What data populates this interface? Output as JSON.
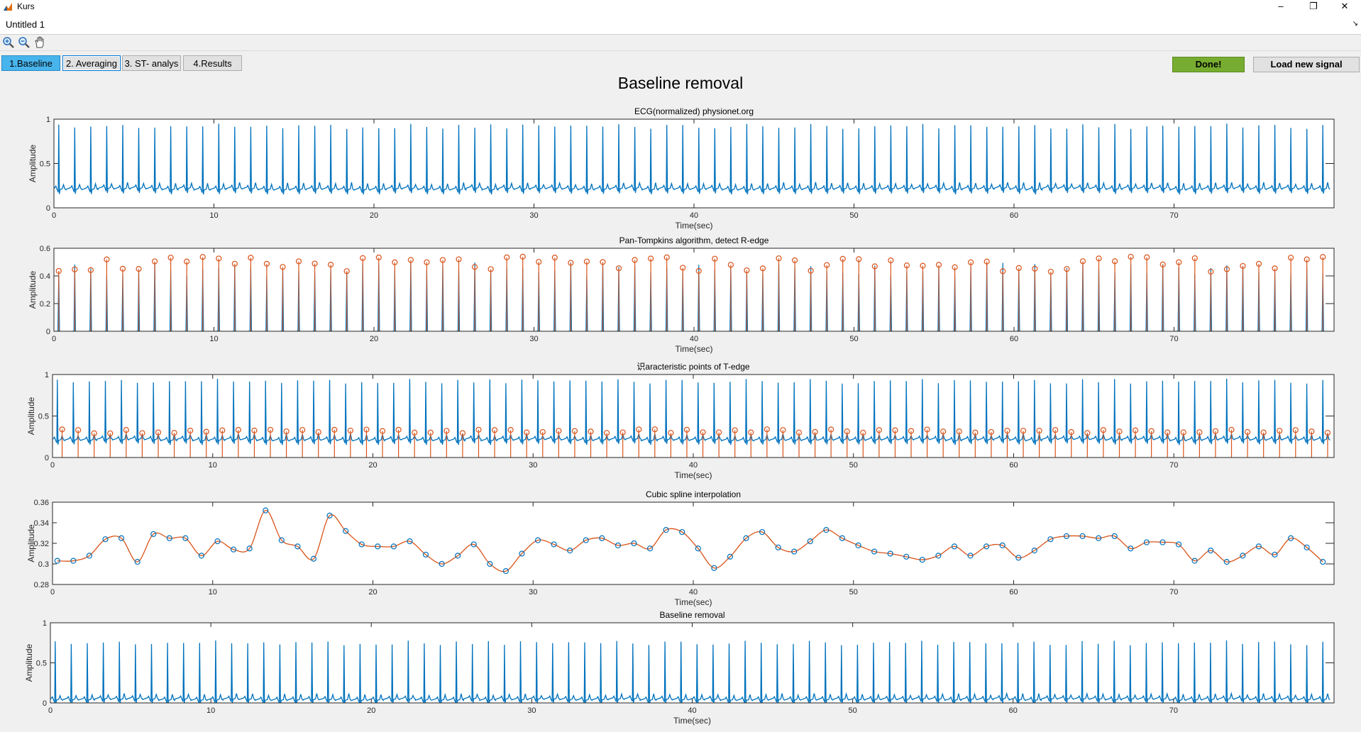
{
  "window": {
    "app_title": "Kurs",
    "minimize_glyph": "–",
    "restore_glyph": "❐",
    "close_glyph": "✕"
  },
  "document": {
    "title": "Untitled 1",
    "dock_arrow": "↘"
  },
  "toolbar": {
    "icons": [
      "zoom-in-icon",
      "zoom-out-icon",
      "pan-hand-icon"
    ]
  },
  "tabs": [
    {
      "label": "1.Baseline",
      "active": true
    },
    {
      "label": "2. Averaging",
      "active": false
    },
    {
      "label": "3. ST- analys",
      "active": false
    },
    {
      "label": "4.Results",
      "active": false
    }
  ],
  "buttons": {
    "done": "Done!",
    "load": "Load new signal"
  },
  "colors": {
    "signal": "#0072bd",
    "marker": "#d95319",
    "done": "#77ac30",
    "active_tab": "#48b4ec"
  },
  "page_title": "Baseline removal",
  "chart_data": [
    {
      "type": "line",
      "title": "ECG(normalized) physionet.org",
      "xlabel": "Time(sec)",
      "ylabel": "Amplitude",
      "xlim": [
        0,
        80
      ],
      "ylim": [
        0,
        1
      ],
      "xticks": [
        0,
        10,
        20,
        30,
        40,
        50,
        60,
        70
      ],
      "yticks": [
        "0",
        "0.5",
        "1"
      ],
      "series": [
        {
          "kind": "ecg",
          "baseline": 0.2,
          "peak": 0.95
        }
      ]
    },
    {
      "type": "line",
      "title": "Pan-Tompkins algorithm, detect R-edge",
      "xlabel": "Time(sec)",
      "ylabel": "Amplitude",
      "xlim": [
        0,
        80
      ],
      "ylim": [
        0,
        0.6
      ],
      "xticks": [
        0,
        10,
        20,
        30,
        40,
        50,
        60,
        70
      ],
      "yticks": [
        "0",
        "0.2",
        "0.4",
        "0.6"
      ],
      "series": [
        {
          "kind": "pulses",
          "peak": 0.5
        },
        {
          "kind": "r-peak-markers",
          "marker": "o"
        }
      ]
    },
    {
      "type": "line",
      "title": "识aracteristic points of T-edge",
      "xlabel": "Time(sec)",
      "ylabel": "Amplitude",
      "xlim": [
        0,
        80
      ],
      "ylim": [
        0,
        1
      ],
      "xticks": [
        0,
        10,
        20,
        30,
        40,
        50,
        60,
        70
      ],
      "yticks": [
        "0",
        "0.5",
        "1"
      ],
      "series": [
        {
          "kind": "ecg",
          "baseline": 0.2,
          "peak": 0.95
        },
        {
          "kind": "t-point-markers",
          "level": 0.31,
          "marker": "o"
        }
      ]
    },
    {
      "type": "line",
      "title": "Cubic spline interpolation",
      "xlabel": "Time(sec)",
      "ylabel": "Amplitude",
      "xlim": [
        0,
        80
      ],
      "ylim": [
        0.28,
        0.36
      ],
      "xticks": [
        0,
        10,
        20,
        30,
        40,
        50,
        60,
        70
      ],
      "yticks": [
        "0.28",
        "0.3",
        "0.32",
        "0.34",
        "0.36"
      ],
      "points": [
        [
          0.3,
          0.303
        ],
        [
          1.3,
          0.303
        ],
        [
          2.3,
          0.308
        ],
        [
          3.3,
          0.324
        ],
        [
          4.3,
          0.325
        ],
        [
          5.3,
          0.302
        ],
        [
          6.3,
          0.329
        ],
        [
          7.3,
          0.325
        ],
        [
          8.3,
          0.325
        ],
        [
          9.3,
          0.308
        ],
        [
          10.3,
          0.322
        ],
        [
          11.3,
          0.314
        ],
        [
          12.3,
          0.315
        ],
        [
          13.3,
          0.352
        ],
        [
          14.3,
          0.323
        ],
        [
          15.3,
          0.317
        ],
        [
          16.3,
          0.305
        ],
        [
          17.3,
          0.347
        ],
        [
          18.3,
          0.332
        ],
        [
          19.3,
          0.319
        ],
        [
          20.3,
          0.317
        ],
        [
          21.3,
          0.317
        ],
        [
          22.3,
          0.322
        ],
        [
          23.3,
          0.309
        ],
        [
          24.3,
          0.3
        ],
        [
          25.3,
          0.308
        ],
        [
          26.3,
          0.319
        ],
        [
          27.3,
          0.3
        ],
        [
          28.3,
          0.293
        ],
        [
          29.3,
          0.31
        ],
        [
          30.3,
          0.323
        ],
        [
          31.3,
          0.319
        ],
        [
          32.3,
          0.313
        ],
        [
          33.3,
          0.323
        ],
        [
          34.3,
          0.325
        ],
        [
          35.3,
          0.318
        ],
        [
          36.3,
          0.32
        ],
        [
          37.3,
          0.315
        ],
        [
          38.3,
          0.333
        ],
        [
          39.3,
          0.331
        ],
        [
          40.3,
          0.315
        ],
        [
          41.3,
          0.296
        ],
        [
          42.3,
          0.307
        ],
        [
          43.3,
          0.325
        ],
        [
          44.3,
          0.331
        ],
        [
          45.3,
          0.316
        ],
        [
          46.3,
          0.312
        ],
        [
          47.3,
          0.322
        ],
        [
          48.3,
          0.333
        ],
        [
          49.3,
          0.325
        ],
        [
          50.3,
          0.318
        ],
        [
          51.3,
          0.312
        ],
        [
          52.3,
          0.31
        ],
        [
          53.3,
          0.307
        ],
        [
          54.3,
          0.304
        ],
        [
          55.3,
          0.308
        ],
        [
          56.3,
          0.317
        ],
        [
          57.3,
          0.308
        ],
        [
          58.3,
          0.317
        ],
        [
          59.3,
          0.318
        ],
        [
          60.3,
          0.306
        ],
        [
          61.3,
          0.313
        ],
        [
          62.3,
          0.324
        ],
        [
          63.3,
          0.327
        ],
        [
          64.3,
          0.327
        ],
        [
          65.3,
          0.325
        ],
        [
          66.3,
          0.327
        ],
        [
          67.3,
          0.315
        ],
        [
          68.3,
          0.321
        ],
        [
          69.3,
          0.321
        ],
        [
          70.3,
          0.319
        ],
        [
          71.3,
          0.303
        ],
        [
          72.3,
          0.313
        ],
        [
          73.3,
          0.302
        ],
        [
          74.3,
          0.308
        ],
        [
          75.3,
          0.317
        ],
        [
          76.3,
          0.309
        ],
        [
          77.3,
          0.325
        ],
        [
          78.3,
          0.316
        ],
        [
          79.3,
          0.302
        ]
      ],
      "series": [
        {
          "kind": "spline"
        },
        {
          "kind": "knots",
          "marker": "o"
        }
      ]
    },
    {
      "type": "line",
      "title": "Baseline removal",
      "xlabel": "Time(sec)",
      "ylabel": "Amplitude",
      "xlim": [
        0,
        80
      ],
      "ylim": [
        0,
        1
      ],
      "xticks": [
        0,
        10,
        20,
        30,
        40,
        50,
        60,
        70
      ],
      "yticks": [
        "0",
        "0.5",
        "1"
      ],
      "series": [
        {
          "kind": "ecg",
          "baseline": 0.03,
          "peak": 0.78
        }
      ]
    }
  ]
}
